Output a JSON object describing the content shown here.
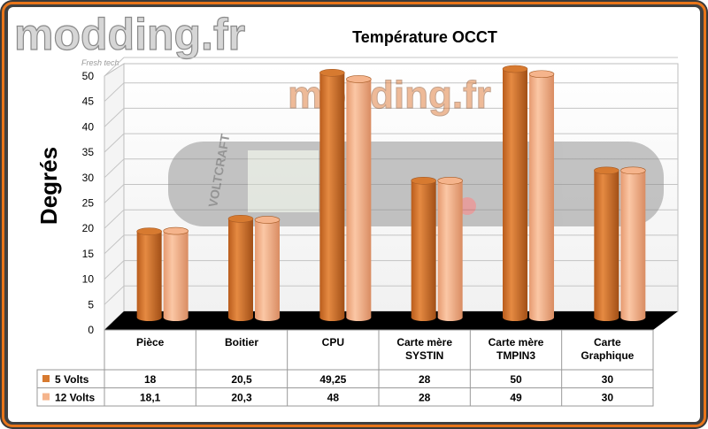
{
  "logo": {
    "text": "modding.fr",
    "tagline": "Fresh tech"
  },
  "watermark": {
    "text": "modding.fr",
    "device_text": "VOLTCRAFT"
  },
  "colors": {
    "series1": "#d77a30",
    "series2": "#f5b48c",
    "frame_accent": "#e8751a"
  },
  "chart_data": {
    "type": "bar",
    "title": "Température OCCT",
    "xlabel": "",
    "ylabel": "Degrés",
    "ylim": [
      0,
      50
    ],
    "yticks": [
      0,
      5,
      10,
      15,
      20,
      25,
      30,
      35,
      40,
      45,
      50
    ],
    "categories": [
      "Pièce",
      "Boitier",
      "CPU",
      "Carte mère SYSTIN",
      "Carte mère TMPIN3",
      "Carte Graphique"
    ],
    "category_lines": [
      [
        "Pièce"
      ],
      [
        "Boitier"
      ],
      [
        "CPU"
      ],
      [
        "Carte mère",
        "SYSTIN"
      ],
      [
        "Carte mère",
        "TMPIN3"
      ],
      [
        "Carte",
        "Graphique"
      ]
    ],
    "series": [
      {
        "name": "5 Volts",
        "values": [
          18,
          20.5,
          49.25,
          28,
          50,
          30
        ],
        "labels": [
          "18",
          "20,5",
          "49,25",
          "28",
          "50",
          "30"
        ]
      },
      {
        "name": "12 Volts",
        "values": [
          18.1,
          20.3,
          48,
          28,
          49,
          30
        ],
        "labels": [
          "18,1",
          "20,3",
          "48",
          "28",
          "49",
          "30"
        ]
      }
    ]
  }
}
